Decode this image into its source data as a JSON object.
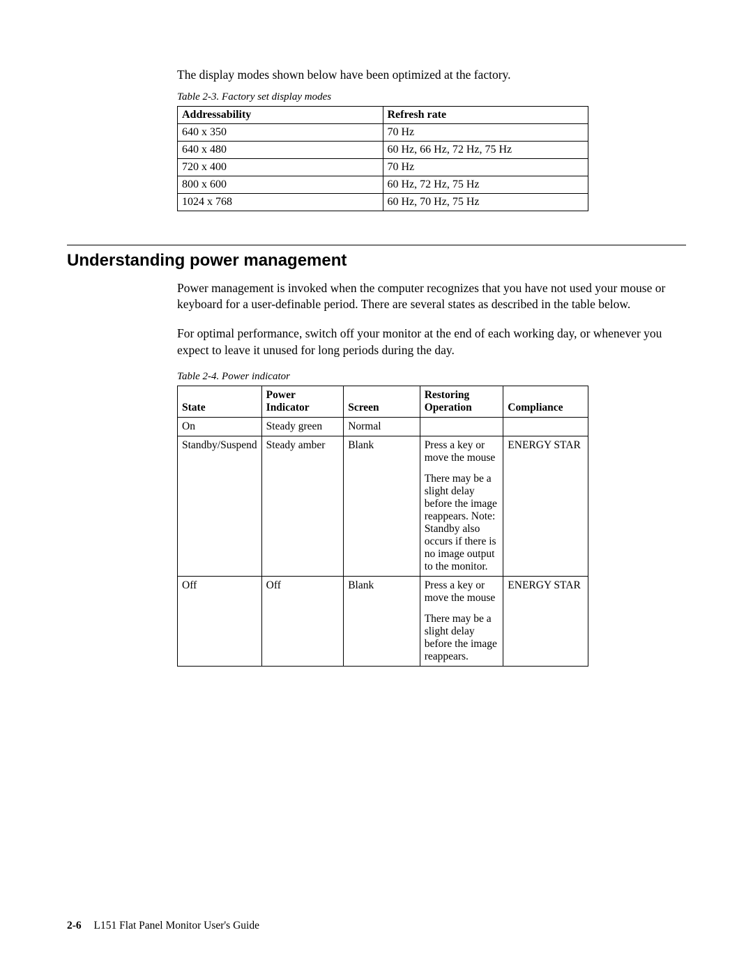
{
  "intro": "The display modes shown below have been optimized at the factory.",
  "table1": {
    "caption": "Table 2-3. Factory set display modes",
    "columns": [
      "Addressability",
      "Refresh rate"
    ],
    "rows": [
      [
        "640 x 350",
        "70 Hz"
      ],
      [
        "640 x 480",
        "60 Hz, 66 Hz, 72 Hz, 75 Hz"
      ],
      [
        "720 x 400",
        "70 Hz"
      ],
      [
        "800 x 600",
        "60 Hz, 72 Hz, 75 Hz"
      ],
      [
        "1024 x 768",
        "60 Hz, 70 Hz, 75 Hz"
      ]
    ]
  },
  "section_heading": "Understanding power management",
  "para1": "Power management is invoked when the computer recognizes that you have not used your mouse or keyboard for a user-definable period. There are several states as described in the table below.",
  "para2": "For optimal performance, switch off your monitor at the end of each working day, or whenever you expect to leave it unused for long periods during the day.",
  "table2": {
    "caption": "Table 2-4. Power indicator",
    "columns": [
      "State",
      "Power Indicator",
      "Screen",
      "Restoring Operation",
      "Compliance"
    ],
    "header_restoring_line1": "Restoring",
    "header_restoring_line2": "Operation",
    "rows": [
      {
        "state": "On",
        "pind": "Steady green",
        "screen": "Normal",
        "restore_p1": "",
        "restore_p2": "",
        "compliance": ""
      },
      {
        "state": "Standby/Suspend",
        "pind": "Steady amber",
        "screen": "Blank",
        "restore_p1": "Press a key or move the mouse",
        "restore_p2": "There may be a slight delay before the image reappears. Note: Standby also occurs if there is no image output to the monitor.",
        "compliance": "ENERGY STAR"
      },
      {
        "state": "Off",
        "pind": "Off",
        "screen": "Blank",
        "restore_p1": "Press a key or move the mouse",
        "restore_p2": "There may be a slight delay before the image reappears.",
        "compliance": "ENERGY STAR"
      }
    ]
  },
  "footer": {
    "pagenum": "2-6",
    "title": "L151 Flat Panel Monitor User's Guide"
  }
}
